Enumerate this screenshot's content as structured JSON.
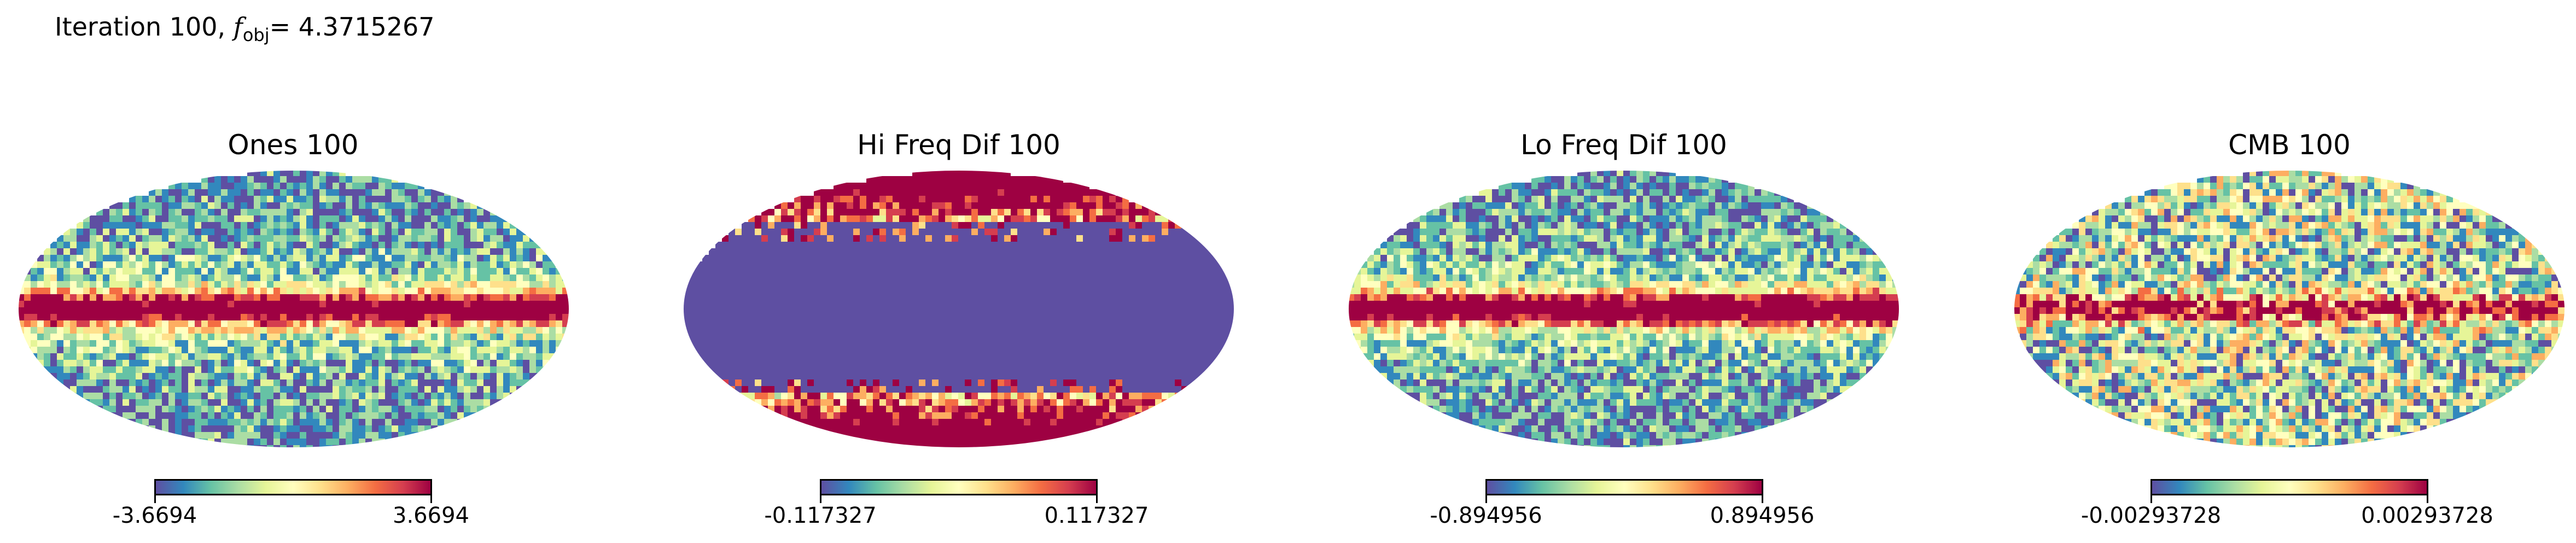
{
  "figure": {
    "title_prefix": "Iteration 100, ",
    "fobj_symbol": "f",
    "fobj_sub": "obj",
    "fobj_value": "= 4.3715267"
  },
  "panels": [
    {
      "title": "Ones 100",
      "min_label": "-3.6694",
      "max_label": "3.6694",
      "pattern": "galactic-noisy"
    },
    {
      "title": "Hi Freq Dif 100",
      "min_label": "-0.117327",
      "max_label": "0.117327",
      "pattern": "saturated-poles"
    },
    {
      "title": "Lo Freq Dif 100",
      "min_label": "-0.894956",
      "max_label": "0.894956",
      "pattern": "galactic-noisy"
    },
    {
      "title": "CMB 100",
      "min_label": "-0.00293728",
      "max_label": "0.00293728",
      "pattern": "cmb-anisotropy"
    }
  ],
  "colormap": [
    "#5e4fa2",
    "#3288bd",
    "#66c2a5",
    "#abdda4",
    "#e6f598",
    "#ffffbf",
    "#fee08b",
    "#fdae61",
    "#f46d43",
    "#d53e4f",
    "#9e0142"
  ]
}
